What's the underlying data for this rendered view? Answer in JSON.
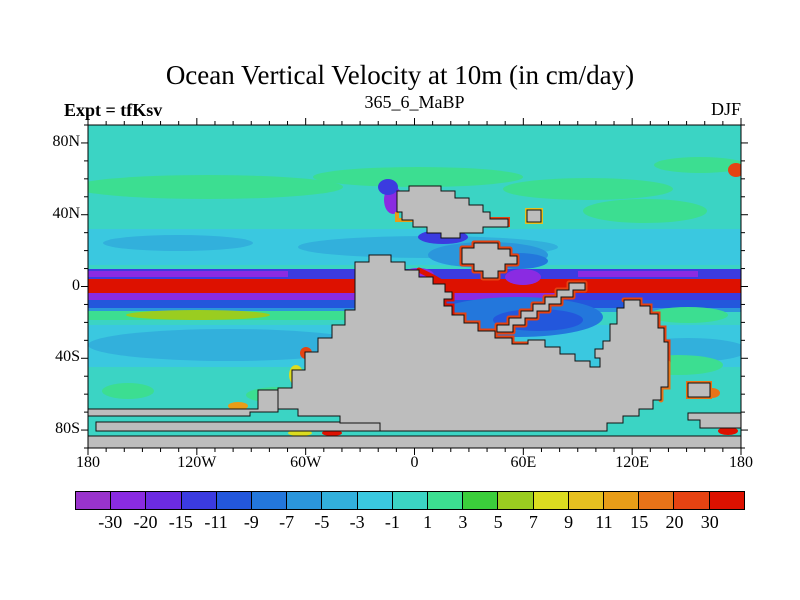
{
  "header": {
    "title": "Ocean Vertical Velocity at 10m (in cm/day)",
    "subtitle": "365_6_MaBP",
    "experiment_label": "Expt = tfKsv",
    "season": "DJF"
  },
  "axes": {
    "x_labels": [
      {
        "text": "180",
        "lon": -180
      },
      {
        "text": "120W",
        "lon": -120
      },
      {
        "text": "60W",
        "lon": -60
      },
      {
        "text": "0",
        "lon": 0
      },
      {
        "text": "60E",
        "lon": 60
      },
      {
        "text": "120E",
        "lon": 120
      },
      {
        "text": "180",
        "lon": 180
      }
    ],
    "y_labels": [
      {
        "text": "80N",
        "lat": 80
      },
      {
        "text": "40N",
        "lat": 40
      },
      {
        "text": "0",
        "lat": 0
      },
      {
        "text": "40S",
        "lat": -40
      },
      {
        "text": "80S",
        "lat": -80
      }
    ]
  },
  "colorbar": {
    "labels": [
      "-30",
      "-20",
      "-15",
      "-11",
      "-9",
      "-7",
      "-5",
      "-3",
      "-1",
      "1",
      "3",
      "5",
      "7",
      "9",
      "11",
      "15",
      "20",
      "30"
    ]
  },
  "chart_data": {
    "type": "heatmap",
    "subtype": "filled-contour-global-map",
    "title": "Ocean Vertical Velocity at 10m (in cm/day)",
    "run_label": "365_6_MaBP",
    "experiment": "tfKsv",
    "season": "DJF",
    "variable": "ocean vertical velocity",
    "depth": "10m",
    "units": "cm/day",
    "lon_range": [
      -180,
      180
    ],
    "lat_range": [
      -90,
      90
    ],
    "grid": "off",
    "legend_position": "bottom-colorbar",
    "levels": [
      -30,
      -20,
      -15,
      -11,
      -9,
      -7,
      -5,
      -3,
      -1,
      1,
      3,
      5,
      7,
      9,
      11,
      15,
      20,
      30
    ],
    "palette": [
      "#9933CC",
      "#8A2BE2",
      "#6C2BE2",
      "#3B3BE0",
      "#2357DC",
      "#2377DC",
      "#2B96DC",
      "#32B0DC",
      "#3AC8E0",
      "#3BD4C4",
      "#3CDE91",
      "#3BCE3B",
      "#9ACD20",
      "#DCDC20",
      "#E6C020",
      "#E89D18",
      "#E87318",
      "#E64312",
      "#DD1100"
    ],
    "land_color": "#BDBDBD",
    "coast_color": "#111111",
    "features": [
      "strong red equatorial upwelling band (> 30 cm/day) spanning nearly all longitudes near 0-2N",
      "dark blue / purple downwelling bands (-9 to -30 cm/day) flanking the equator to the north and south",
      "background ocean mostly -1 to 1 cm/day (teal) with weak upwelling (1-3, green) near 50-60N and 55-70S",
      "weak downwelling bands (-1 to -5, light blue) near 15-35N and 15-45S",
      "gray stair-stepped paleo-continents (365.6 Ma) with intense red/orange coastal upwelling rims",
      "Antarctic-like gray land strip along the southern map edge"
    ]
  }
}
